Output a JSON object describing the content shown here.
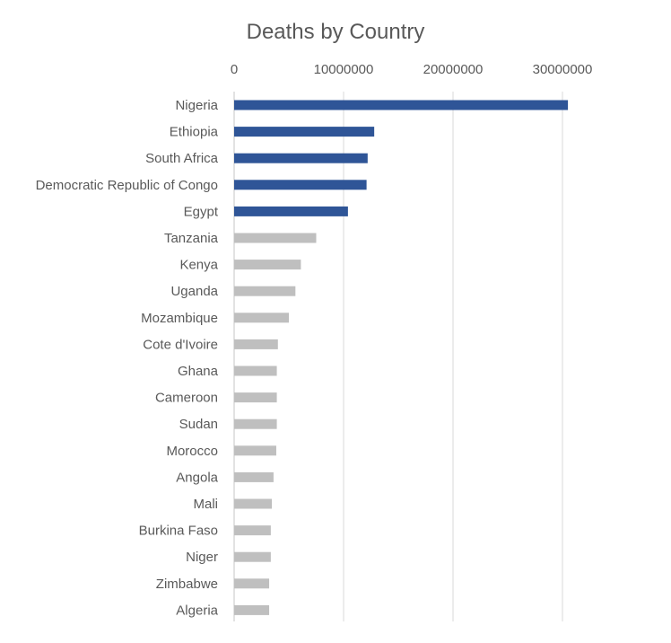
{
  "chart_data": {
    "type": "bar",
    "orientation": "horizontal",
    "title": "Deaths by Country",
    "xlabel": "",
    "ylabel": "",
    "xlim": [
      0,
      35000000
    ],
    "x_ticks": [
      0,
      10000000,
      20000000,
      30000000
    ],
    "x_tick_labels": [
      "0",
      "10000000",
      "20000000",
      "30000000"
    ],
    "x_axis_position": "top",
    "grid": true,
    "legend": "none",
    "categories": [
      "Nigeria",
      "Ethiopia",
      "South Africa",
      "Democratic Republic of Congo",
      "Egypt",
      "Tanzania",
      "Kenya",
      "Uganda",
      "Mozambique",
      "Cote d'Ivoire",
      "Ghana",
      "Cameroon",
      "Sudan",
      "Morocco",
      "Angola",
      "Mali",
      "Burkina Faso",
      "Niger",
      "Zimbabwe",
      "Algeria"
    ],
    "values": [
      30500000,
      12800000,
      12200000,
      12100000,
      10400000,
      7500000,
      6100000,
      5600000,
      5000000,
      4000000,
      3900000,
      3900000,
      3900000,
      3850000,
      3600000,
      3450000,
      3350000,
      3350000,
      3200000,
      3200000
    ],
    "highlight_count": 5,
    "colors": {
      "highlight": "#2f5597",
      "other": "#bfbfbf",
      "grid": "#d9d9d9",
      "text": "#595959"
    }
  }
}
